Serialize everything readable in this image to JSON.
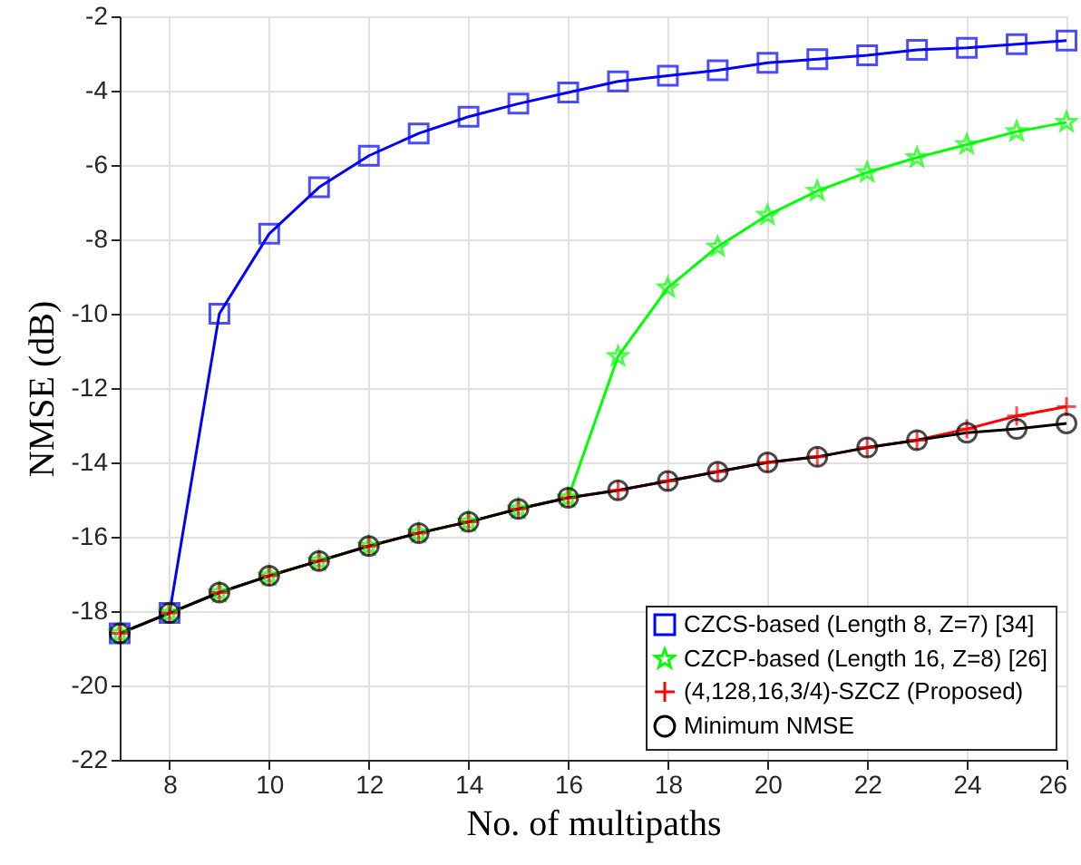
{
  "chart_data": {
    "type": "line",
    "xlabel": "No. of multipaths",
    "ylabel": "NMSE (dB)",
    "x": [
      7,
      8,
      9,
      10,
      11,
      12,
      13,
      14,
      15,
      16,
      17,
      18,
      19,
      20,
      21,
      22,
      23,
      24,
      25,
      26
    ],
    "xlim": [
      7,
      26
    ],
    "xticks": [
      8,
      10,
      12,
      14,
      16,
      18,
      20,
      22,
      24,
      26
    ],
    "ylim": [
      -22,
      -2
    ],
    "yticks": [
      -22,
      -20,
      -18,
      -16,
      -14,
      -12,
      -10,
      -8,
      -6,
      -4,
      -2
    ],
    "grid": true,
    "legend": "bottom right",
    "line_style": "solid",
    "series": [
      {
        "name": "CZCS-based (Length 8, Z=7) [34]",
        "color": "#0000ff",
        "marker": "square",
        "values": [
          -18.6,
          -18.05,
          -10.0,
          -7.85,
          -6.6,
          -5.75,
          -5.15,
          -4.7,
          -4.35,
          -4.05,
          -3.75,
          -3.6,
          -3.45,
          -3.25,
          -3.15,
          -3.05,
          -2.9,
          -2.85,
          -2.75,
          -2.65
        ]
      },
      {
        "name": "CZCP-based (Length 16, Z=8) [26]",
        "color": "#00ff00",
        "marker": "star",
        "values": [
          -18.6,
          -18.05,
          -17.5,
          -17.05,
          -16.65,
          -16.25,
          -15.9,
          -15.6,
          -15.25,
          -14.95,
          -11.15,
          -9.3,
          -8.2,
          -7.35,
          -6.7,
          -6.2,
          -5.8,
          -5.45,
          -5.1,
          -4.85
        ]
      },
      {
        "name": "(4,128,16,3/4)-SZCZ (Proposed)",
        "color": "#ff0000",
        "marker": "cross",
        "values": [
          -18.6,
          -18.05,
          -17.5,
          -17.05,
          -16.65,
          -16.25,
          -15.9,
          -15.6,
          -15.25,
          -14.95,
          -14.75,
          -14.5,
          -14.25,
          -14.0,
          -13.85,
          -13.6,
          -13.4,
          -13.1,
          -12.75,
          -12.5
        ]
      },
      {
        "name": "Minimum NMSE",
        "color": "#000000",
        "marker": "circle",
        "values": [
          -18.6,
          -18.05,
          -17.5,
          -17.05,
          -16.65,
          -16.25,
          -15.9,
          -15.6,
          -15.25,
          -14.95,
          -14.75,
          -14.5,
          -14.25,
          -14.0,
          -13.85,
          -13.6,
          -13.4,
          -13.2,
          -13.1,
          -12.95
        ]
      }
    ]
  }
}
